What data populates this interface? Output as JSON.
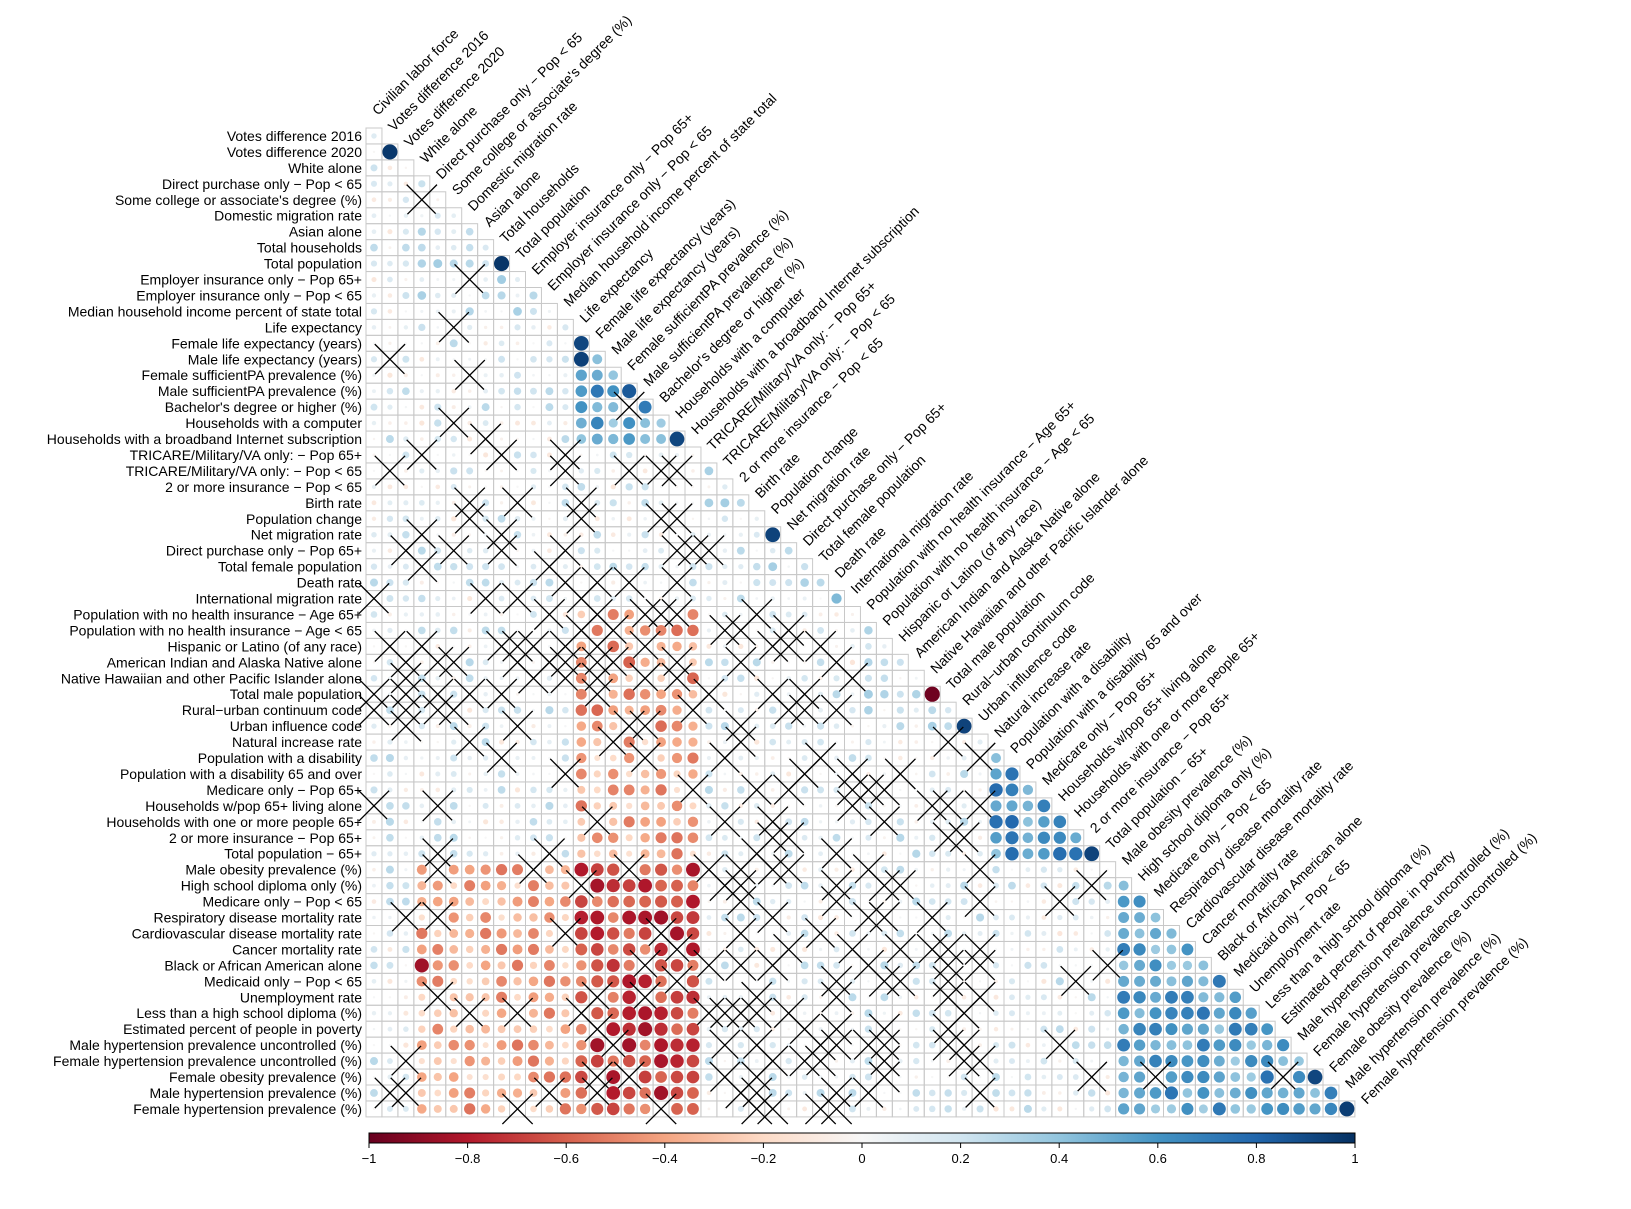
{
  "chart_data": {
    "type": "heatmap",
    "variant": "lower-triangle correlation matrix with circle markers; crossed cells are non-significant",
    "variables": [
      "Civilian labor force",
      "Votes difference 2016",
      "Votes difference 2020",
      "White alone",
      "Direct purchase only − Pop < 65",
      "Some college or associate's degree (%)",
      "Domestic migration rate",
      "Asian alone",
      "Total households",
      "Total population",
      "Employer insurance only − Pop 65+",
      "Employer insurance only − Pop < 65",
      "Median household income percent of state total",
      "Life expectancy",
      "Female life expectancy (years)",
      "Male life expectancy (years)",
      "Female sufficientPA prevalence (%)",
      "Male sufficientPA prevalence (%)",
      "Bachelor's degree or higher (%)",
      "Households with a computer",
      "Households with a broadband Internet subscription",
      "TRICARE/Military/VA only: − Pop 65+",
      "TRICARE/Military/VA only: − Pop < 65",
      "2 or more insurance − Pop < 65",
      "Birth rate",
      "Population change",
      "Net migration rate",
      "Direct purchase only − Pop 65+",
      "Total female population",
      "Death rate",
      "International migration rate",
      "Population with no health insurance − Age 65+",
      "Population with no health insurance − Age < 65",
      "Hispanic or Latino (of any race)",
      "American Indian and Alaska Native alone",
      "Native Hawaiian and other Pacific Islander alone",
      "Total male population",
      "Rural−urban continuum code",
      "Urban influence code",
      "Natural increase rate",
      "Population with a disability",
      "Population with a disability 65 and over",
      "Medicare only − Pop 65+",
      "Households w/pop 65+ living alone",
      "Households with one or more people 65+",
      "2 or more insurance − Pop 65+",
      "Total population − 65+",
      "Male obesity prevalence (%)",
      "High school diploma only (%)",
      "Medicare only − Pop < 65",
      "Respiratory disease mortality rate",
      "Cardiovascular disease mortality rate",
      "Cancer mortality rate",
      "Black or African American alone",
      "Medicaid only − Pop < 65",
      "Unemployment rate",
      "Less than a high school diploma (%)",
      "Estimated percent of people in poverty",
      "Male hypertension prevalence uncontrolled (%)",
      "Female hypertension prevalence uncontrolled (%)",
      "Female obesity prevalence (%)",
      "Male hypertension prevalence (%)",
      "Female hypertension prevalence (%)"
    ],
    "value_range": [
      -1,
      1
    ],
    "colorbar": {
      "ticks": [
        -1,
        -0.8,
        -0.6,
        -0.4,
        -0.2,
        0,
        0.2,
        0.4,
        0.6,
        0.8,
        1
      ],
      "tick_labels": [
        "−1",
        "−0.8",
        "−0.6",
        "−0.4",
        "−0.2",
        "0",
        "0.2",
        "0.4",
        "0.6",
        "0.8",
        "1"
      ],
      "colors": [
        "#67001f",
        "#b2182b",
        "#d6604d",
        "#f4a582",
        "#fddbc7",
        "#f7f7f7",
        "#d1e5f0",
        "#92c5de",
        "#4393c3",
        "#2166ac",
        "#053061"
      ]
    },
    "strong_pairs": [
      {
        "a": "Votes difference 2016",
        "b": "Votes difference 2020",
        "r": 0.97
      },
      {
        "a": "Total households",
        "b": "Total population",
        "r": 0.98
      },
      {
        "a": "Life expectancy",
        "b": "Female life expectancy (years)",
        "r": 0.92
      },
      {
        "a": "Life expectancy",
        "b": "Male life expectancy (years)",
        "r": 0.94
      },
      {
        "a": "Female sufficientPA prevalence (%)",
        "b": "Male sufficientPA prevalence (%)",
        "r": 0.85
      },
      {
        "a": "Households with a computer",
        "b": "Households with a broadband Internet subscription",
        "r": 0.92
      },
      {
        "a": "Birth rate",
        "b": "Population change",
        "r": 0.08
      },
      {
        "a": "Population change",
        "b": "Net migration rate",
        "r": 0.93
      },
      {
        "a": "Death rate",
        "b": "International migration rate",
        "r": 0.45
      },
      {
        "a": "Native Hawaiian and other Pacific Islander alone",
        "b": "Total male population",
        "r": -0.98
      },
      {
        "a": "Rural−urban continuum code",
        "b": "Urban influence code",
        "r": 0.93
      },
      {
        "a": "Total population − 65+",
        "b": "2 or more insurance − Pop 65+",
        "r": 0.93
      },
      {
        "a": "Black or African American alone",
        "b": "White alone",
        "r": -0.85
      },
      {
        "a": "Female obesity prevalence (%)",
        "b": "Female hypertension prevalence uncontrolled (%)",
        "r": 0.92
      },
      {
        "a": "Female hypertension prevalence (%)",
        "b": "Male hypertension prevalence (%)",
        "r": 0.95
      }
    ]
  }
}
